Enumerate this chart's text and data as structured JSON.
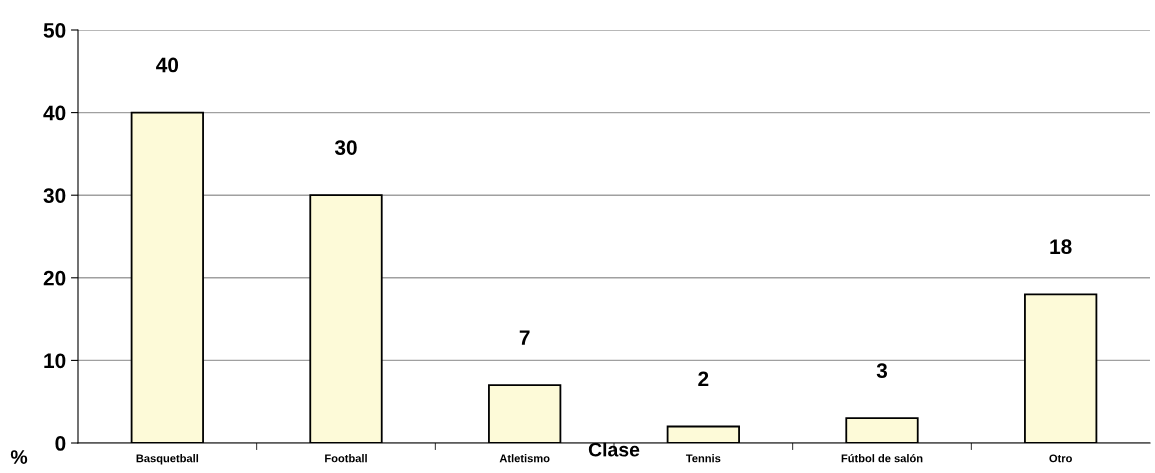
{
  "chart_data": {
    "type": "bar",
    "xlabel": "Clase",
    "ylabel": "%",
    "categories": [
      "Basquetball",
      "Football",
      "Atletismo",
      "Tennis",
      "Fútbol de salón",
      "Otro"
    ],
    "values": [
      40,
      30,
      7,
      2,
      3,
      18
    ],
    "color": "#fdfad8",
    "ylim": [
      0,
      50
    ],
    "yticks": [
      0,
      10,
      20,
      30,
      40,
      50
    ],
    "grid": "y",
    "data_labels": true,
    "legend": false
  }
}
